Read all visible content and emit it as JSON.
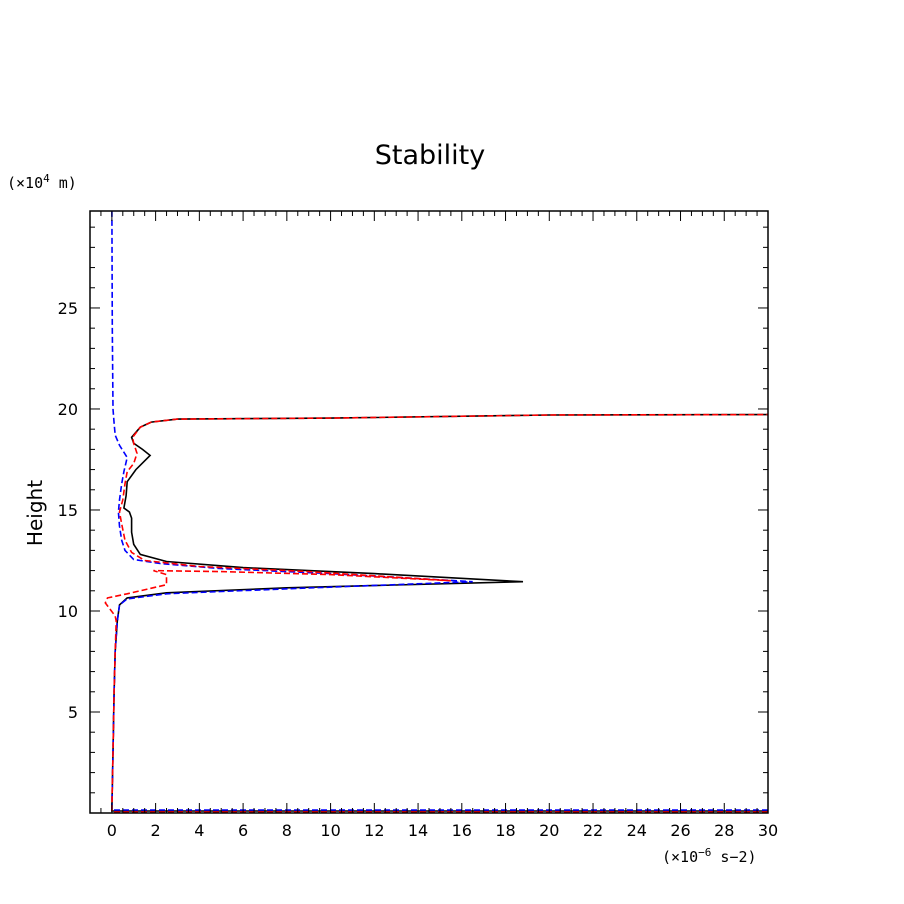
{
  "chart_data": {
    "type": "line",
    "title": "Stability",
    "xlabel": "",
    "ylabel": "Height",
    "x_unit": {
      "prefix": "(×10",
      "exp": "−6",
      "suffix": " s−2)"
    },
    "y_unit": {
      "prefix": "(×10",
      "exp": "4",
      "suffix": " m)"
    },
    "xlim": [
      -1,
      30
    ],
    "ylim": [
      0,
      29.8
    ],
    "x_ticks": [
      0,
      2,
      4,
      6,
      8,
      10,
      12,
      14,
      16,
      18,
      20,
      22,
      24,
      26,
      28,
      30
    ],
    "y_ticks": [
      5,
      10,
      15,
      20,
      25
    ],
    "grid": false,
    "legend": "none",
    "series": [
      {
        "color": "#000000",
        "dash": "solid",
        "points": [
          [
            30,
            0.1
          ],
          [
            0,
            0.1
          ],
          [
            0,
            0.25
          ],
          [
            0.05,
            3
          ],
          [
            0.1,
            6
          ],
          [
            0.15,
            8
          ],
          [
            0.25,
            9.5
          ],
          [
            0.35,
            10.3
          ],
          [
            0.7,
            10.65
          ],
          [
            2.5,
            10.9
          ],
          [
            8,
            11.15
          ],
          [
            18.8,
            11.45
          ],
          [
            12,
            11.85
          ],
          [
            6,
            12.15
          ],
          [
            2.5,
            12.45
          ],
          [
            1.3,
            12.8
          ],
          [
            1.0,
            13.3
          ],
          [
            0.9,
            13.9
          ],
          [
            0.9,
            14.6
          ],
          [
            0.8,
            14.9
          ],
          [
            0.55,
            15.1
          ],
          [
            0.65,
            15.7
          ],
          [
            0.7,
            16.4
          ],
          [
            1.1,
            17.0
          ],
          [
            1.75,
            17.7
          ],
          [
            1.4,
            18.0
          ],
          [
            1.0,
            18.3
          ],
          [
            0.9,
            18.6
          ],
          [
            1.3,
            19.1
          ],
          [
            1.8,
            19.35
          ],
          [
            3,
            19.5
          ],
          [
            10,
            19.55
          ],
          [
            20,
            19.7
          ],
          [
            30,
            19.72
          ]
        ]
      },
      {
        "color": "#0000ff",
        "dash": "dashed",
        "points": [
          [
            30,
            0.15
          ],
          [
            0,
            0.15
          ],
          [
            0,
            0.3
          ],
          [
            0.05,
            3
          ],
          [
            0.1,
            6
          ],
          [
            0.15,
            8
          ],
          [
            0.25,
            9.5
          ],
          [
            0.35,
            10.3
          ],
          [
            0.7,
            10.6
          ],
          [
            2.5,
            10.85
          ],
          [
            8,
            11.1
          ],
          [
            16.5,
            11.45
          ],
          [
            10,
            11.85
          ],
          [
            5,
            12.1
          ],
          [
            2.2,
            12.35
          ],
          [
            1.0,
            12.55
          ],
          [
            0.6,
            13.0
          ],
          [
            0.45,
            13.5
          ],
          [
            0.35,
            14.2
          ],
          [
            0.3,
            14.9
          ],
          [
            0.35,
            15.5
          ],
          [
            0.45,
            16.3
          ],
          [
            0.55,
            16.9
          ],
          [
            0.7,
            17.6
          ],
          [
            0.35,
            18.2
          ],
          [
            0.15,
            18.7
          ],
          [
            0.1,
            19.3
          ],
          [
            0.05,
            20
          ],
          [
            0.02,
            24
          ],
          [
            0,
            29.8
          ]
        ]
      },
      {
        "color": "#ff0000",
        "dash": "dashed",
        "points": [
          [
            30,
            0.05
          ],
          [
            0,
            0.05
          ],
          [
            0,
            0.3
          ],
          [
            0.05,
            3
          ],
          [
            0.1,
            6
          ],
          [
            0.15,
            8
          ],
          [
            0.2,
            9.5
          ],
          [
            0.15,
            9.75
          ],
          [
            -0.3,
            10.4
          ],
          [
            -0.2,
            10.65
          ],
          [
            0.7,
            10.85
          ],
          [
            2.5,
            11.3
          ],
          [
            2.5,
            11.8
          ],
          [
            1.9,
            12.0
          ],
          [
            5,
            11.95
          ],
          [
            10,
            11.8
          ],
          [
            15.5,
            11.5
          ],
          [
            9,
            11.95
          ],
          [
            4,
            12.2
          ],
          [
            1.5,
            12.5
          ],
          [
            0.9,
            12.9
          ],
          [
            0.6,
            13.5
          ],
          [
            0.45,
            14.3
          ],
          [
            0.35,
            14.9
          ],
          [
            0.5,
            15.5
          ],
          [
            0.6,
            16.3
          ],
          [
            0.7,
            16.9
          ],
          [
            1.0,
            17.3
          ],
          [
            1.15,
            17.8
          ],
          [
            1.0,
            18.3
          ],
          [
            0.95,
            18.6
          ],
          [
            1.3,
            19.1
          ],
          [
            1.8,
            19.35
          ],
          [
            3,
            19.5
          ],
          [
            10,
            19.55
          ],
          [
            20,
            19.7
          ],
          [
            30,
            19.72
          ]
        ]
      }
    ]
  }
}
